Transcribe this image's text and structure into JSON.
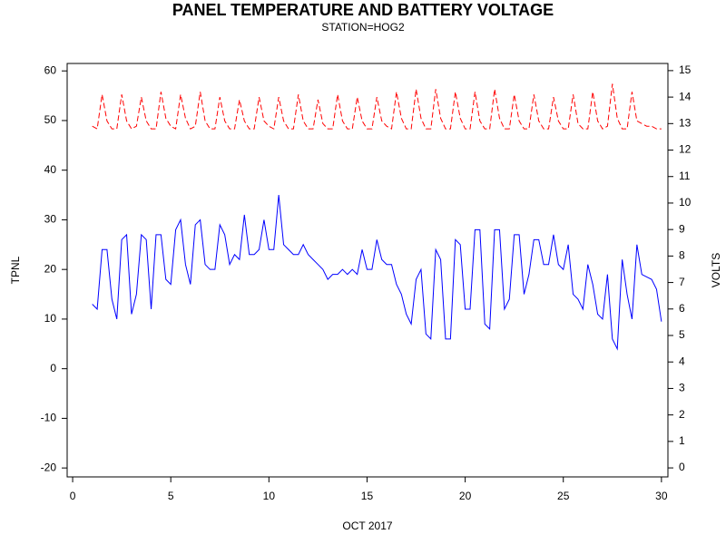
{
  "chart_data": {
    "type": "line",
    "title": "PANEL TEMPERATURE AND BATTERY VOLTAGE",
    "subtitle": "STATION=HOG2",
    "x_label": "OCT 2017",
    "y_label": "TPNL",
    "y2_label": "VOLTS",
    "x": [
      1,
      1.25,
      1.5,
      1.75,
      2,
      2.25,
      2.5,
      2.75,
      3,
      3.25,
      3.5,
      3.75,
      4,
      4.25,
      4.5,
      4.75,
      5,
      5.25,
      5.5,
      5.75,
      6,
      6.25,
      6.5,
      6.75,
      7,
      7.25,
      7.5,
      7.75,
      8,
      8.25,
      8.5,
      8.75,
      9,
      9.25,
      9.5,
      9.75,
      10,
      10.25,
      10.5,
      10.75,
      11,
      11.25,
      11.5,
      11.75,
      12,
      12.25,
      12.5,
      12.75,
      13,
      13.25,
      13.5,
      13.75,
      14,
      14.25,
      14.5,
      14.75,
      15,
      15.25,
      15.5,
      15.75,
      16,
      16.25,
      16.5,
      16.75,
      17,
      17.25,
      17.5,
      17.75,
      18,
      18.25,
      18.5,
      18.75,
      19,
      19.25,
      19.5,
      19.75,
      20,
      20.25,
      20.5,
      20.75,
      21,
      21.25,
      21.5,
      21.75,
      22,
      22.25,
      22.5,
      22.75,
      23,
      23.25,
      23.5,
      23.75,
      24,
      24.25,
      24.5,
      24.75,
      25,
      25.25,
      25.5,
      25.75,
      26,
      26.25,
      26.5,
      26.75,
      27,
      27.25,
      27.5,
      27.75,
      28,
      28.25,
      28.5,
      28.75,
      29,
      29.25,
      29.5,
      29.75,
      30
    ],
    "series": [
      {
        "name": "TPNL",
        "color": "#0000ff",
        "axis": "y",
        "dash": false,
        "values": [
          13,
          12,
          24,
          24,
          14,
          10,
          26,
          27,
          11,
          15,
          27,
          26,
          12,
          27,
          27,
          18,
          17,
          28,
          30,
          21,
          17,
          29,
          30,
          21,
          20,
          20,
          29,
          27,
          21,
          23,
          22,
          31,
          23,
          23,
          24,
          30,
          24,
          24,
          35,
          25,
          24,
          23,
          23,
          25,
          23,
          22,
          21,
          20,
          18,
          19,
          19,
          20,
          19,
          20,
          19,
          24,
          20,
          20,
          26,
          22,
          21,
          21,
          17,
          15,
          11,
          9,
          18,
          20,
          7,
          6,
          24,
          22,
          6,
          6,
          26,
          25,
          12,
          12,
          28,
          28,
          9,
          8,
          28,
          28,
          12,
          14,
          27,
          27,
          15,
          19,
          26,
          26,
          21,
          21,
          27,
          21,
          20,
          25,
          15,
          14,
          12,
          21,
          17,
          11,
          10,
          19,
          6,
          4,
          22,
          15,
          10,
          25,
          19,
          18.5,
          18,
          16,
          9.5
        ]
      },
      {
        "name": "VOLTS",
        "color": "#ff0000",
        "axis": "y2",
        "dash": true,
        "values": [
          12.9,
          12.8,
          14.1,
          13.1,
          12.8,
          12.8,
          14.1,
          13.1,
          12.8,
          12.9,
          14.0,
          13.1,
          12.8,
          12.8,
          14.2,
          13.2,
          12.9,
          12.8,
          14.1,
          13.2,
          12.8,
          12.9,
          14.2,
          13.1,
          12.8,
          12.8,
          14.0,
          13.1,
          12.8,
          12.8,
          13.9,
          13.1,
          12.8,
          12.8,
          14.0,
          13.1,
          12.9,
          12.8,
          14.0,
          13.1,
          12.8,
          12.8,
          14.1,
          13.1,
          12.8,
          12.8,
          13.9,
          13.0,
          12.8,
          12.8,
          14.1,
          13.1,
          12.8,
          12.8,
          14.0,
          13.1,
          12.8,
          12.8,
          14.0,
          13.1,
          12.9,
          12.8,
          14.2,
          13.2,
          12.8,
          12.8,
          14.3,
          13.2,
          12.8,
          12.8,
          14.3,
          13.2,
          12.8,
          12.8,
          14.2,
          13.2,
          12.8,
          12.8,
          14.2,
          13.1,
          12.8,
          12.8,
          14.3,
          13.2,
          12.8,
          12.8,
          14.1,
          13.1,
          12.8,
          12.8,
          14.1,
          13.1,
          12.8,
          12.8,
          14.0,
          13.1,
          12.8,
          12.8,
          14.1,
          13.0,
          12.8,
          12.8,
          14.2,
          13.1,
          12.8,
          12.9,
          14.5,
          13.2,
          12.8,
          12.8,
          14.2,
          13.1,
          13.0,
          12.9,
          12.9,
          12.8,
          12.8
        ]
      }
    ],
    "xlim": [
      -0.28,
      30.33
    ],
    "xticks": [
      0,
      5,
      10,
      15,
      20,
      25,
      30
    ],
    "ylim": [
      -21.8,
      61.5
    ],
    "yticks": [
      -20,
      -10,
      0,
      10,
      20,
      30,
      40,
      50,
      60
    ],
    "y2lim": [
      -0.34,
      15.27
    ],
    "y2ticks": [
      0,
      1,
      2,
      3,
      4,
      5,
      6,
      7,
      8,
      9,
      10,
      11,
      12,
      13,
      14,
      15
    ]
  }
}
